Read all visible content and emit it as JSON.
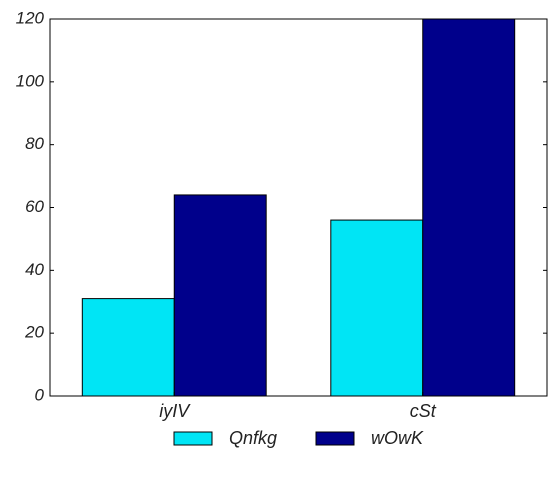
{
  "chart_data": {
    "type": "bar",
    "categories": [
      "iyIV",
      "cSt"
    ],
    "series": [
      {
        "name": "Qnfkg",
        "values": [
          31,
          56
        ],
        "color": "#00e5f5"
      },
      {
        "name": "wOwK",
        "values": [
          64,
          120
        ],
        "color": "#00008b"
      }
    ],
    "ylim": [
      0,
      120
    ],
    "yticks": [
      0,
      20,
      40,
      60,
      80,
      100,
      120
    ],
    "grid": false,
    "legend_position": "bottom-center"
  }
}
